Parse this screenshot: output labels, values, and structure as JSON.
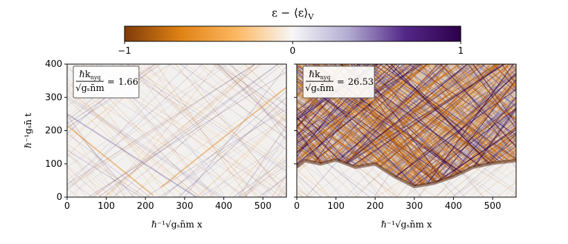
{
  "chart_data": {
    "type": "heatmap",
    "colorbar": {
      "label": "ε − ⟨ε⟩",
      "label_sub": "V",
      "lim": [
        -1,
        1
      ],
      "ticks": [
        {
          "value": -1,
          "label": "−1"
        },
        0,
        1
      ],
      "colors": [
        "#7f3b08",
        "#e08214",
        "#fdb863",
        "#f7f7f7",
        "#b2abd2",
        "#542788",
        "#2d004b"
      ]
    },
    "panels": [
      {
        "xlabel": "ℏ⁻¹√gₛn̄m x",
        "ylabel": "ℏ⁻¹gₛn̄ t",
        "xlim": [
          0,
          560
        ],
        "ylim": [
          0,
          400
        ],
        "xticks": [
          0,
          100,
          200,
          300,
          400,
          500
        ],
        "yticks": [
          0,
          100,
          200,
          300,
          400
        ],
        "ytick_labels": true,
        "annotation": {
          "numerator": "ℏk",
          "numerator_sub": "nyq",
          "denominator": "√gₛn̄m",
          "relation": "=",
          "value": 1.66
        }
      },
      {
        "xlabel": "ℏ⁻¹√gₛn̄m x",
        "xlim": [
          0,
          560
        ],
        "ylim": [
          0,
          400
        ],
        "xticks": [
          0,
          100,
          200,
          300,
          400,
          500
        ],
        "yticks": [
          0,
          100,
          200,
          300,
          400
        ],
        "ytick_labels": false,
        "annotation": {
          "numerator": "ℏk",
          "numerator_sub": "nyq",
          "denominator": "√gₛn̄m",
          "relation": "=",
          "value": 26.53
        }
      }
    ]
  }
}
